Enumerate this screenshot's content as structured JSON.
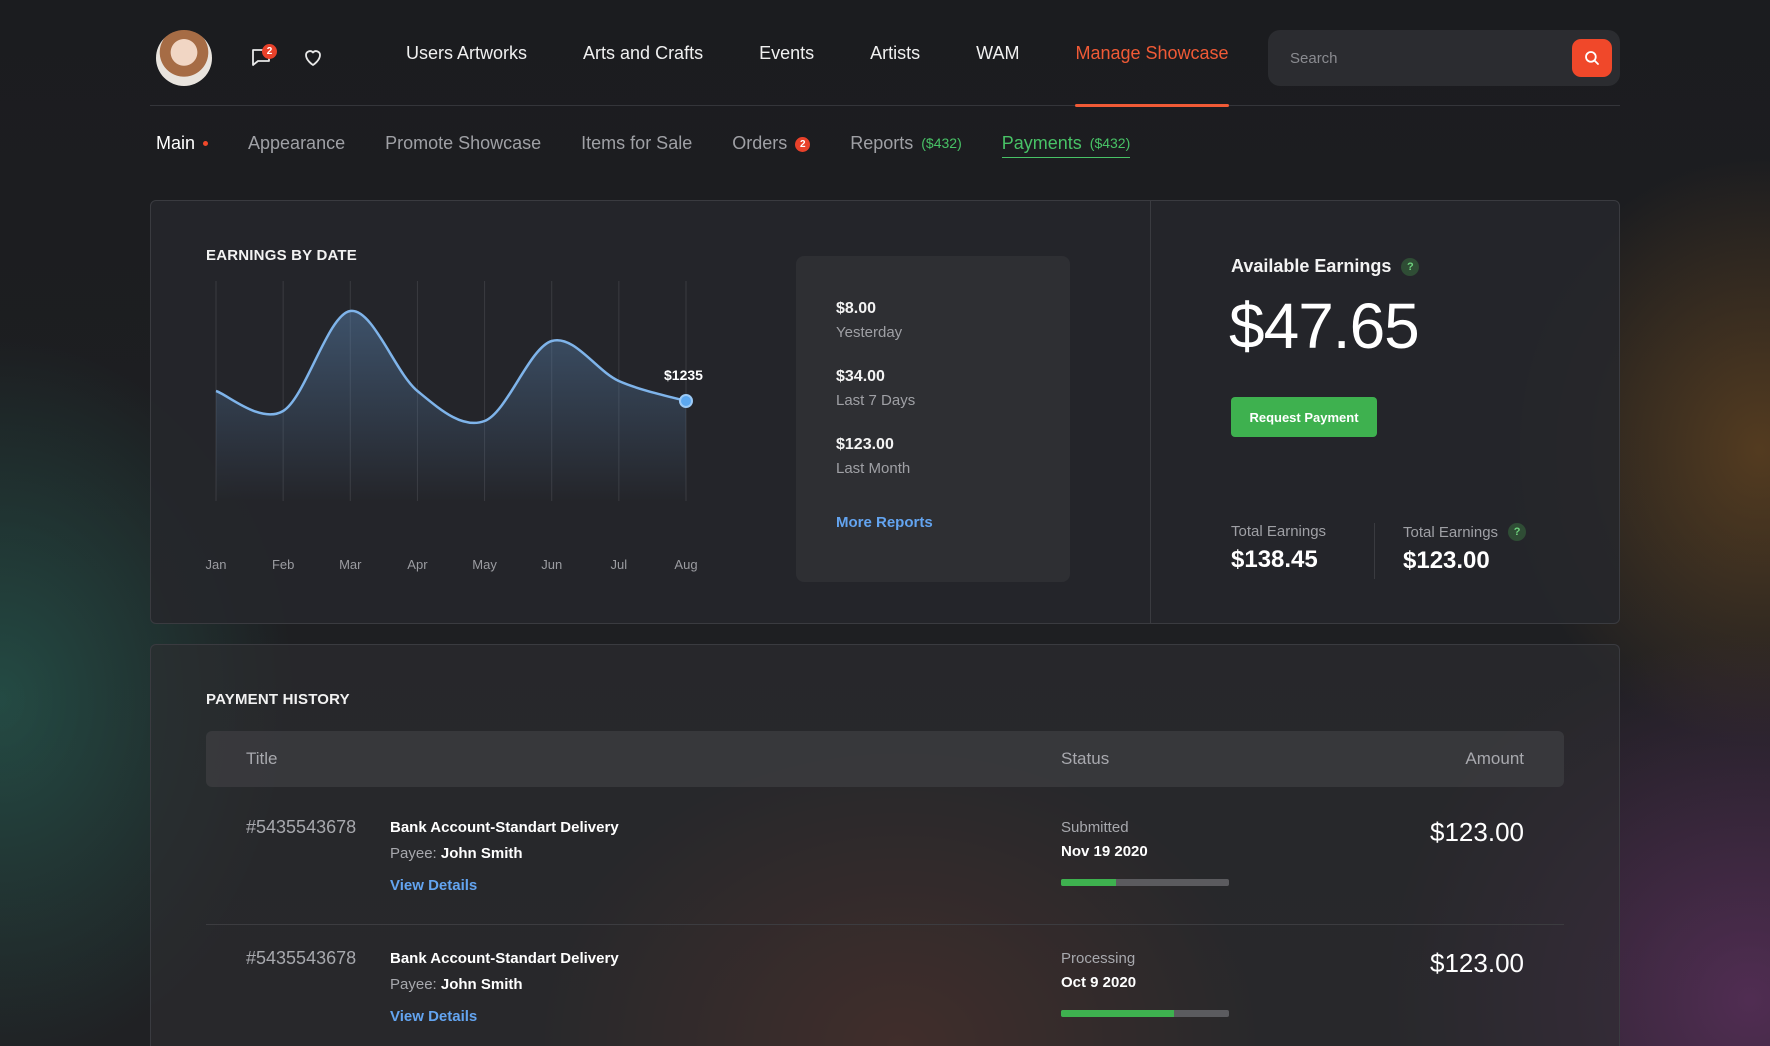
{
  "header": {
    "search_placeholder": "Search",
    "chat_badge": "2",
    "nav": [
      "Users Artworks",
      "Arts and Crafts",
      "Events",
      "Artists",
      "WAM",
      "Manage Showcase"
    ],
    "active_nav": "Manage Showcase"
  },
  "subnav": {
    "main": "Main",
    "appearance": "Appearance",
    "promote": "Promote Showcase",
    "items_for_sale": "Items for Sale",
    "orders": "Orders",
    "orders_badge": "2",
    "reports": "Reports",
    "reports_amount": "($432)",
    "payments": "Payments",
    "payments_amount": "($432)"
  },
  "earnings": {
    "title": "EARNINGS BY DATE",
    "callout": "$1235",
    "summary": [
      {
        "value": "$8.00",
        "label": "Yesterday"
      },
      {
        "value": "$34.00",
        "label": "Last 7 Days"
      },
      {
        "value": "$123.00",
        "label": "Last Month"
      }
    ],
    "more_reports": "More Reports"
  },
  "chart_data": {
    "type": "area",
    "categories": [
      "Jan",
      "Feb",
      "Mar",
      "Apr",
      "May",
      "Jun",
      "Jul",
      "Aug"
    ],
    "values": [
      55,
      45,
      95,
      55,
      40,
      80,
      60,
      50
    ],
    "annotation": "$1235",
    "grid": "vertical"
  },
  "available": {
    "title": "Available Earnings",
    "amount": "$47.65",
    "request_button": "Request Payment",
    "total1_label": "Total Earnings",
    "total1_value": "$138.45",
    "total2_label": "Total Earnings",
    "total2_value": "$123.00"
  },
  "history": {
    "title": "PAYMENT HISTORY",
    "columns": {
      "title": "Title",
      "status": "Status",
      "amount": "Amount"
    },
    "rows": [
      {
        "id": "#5435543678",
        "title": "Bank Account-Standart Delivery",
        "payee_label": "Payee:",
        "payee": "John Smith",
        "link": "View Details",
        "status": "Submitted",
        "date": "Nov 19 2020",
        "progress": 0.33,
        "amount": "$123.00"
      },
      {
        "id": "#5435543678",
        "title": "Bank Account-Standart Delivery",
        "payee_label": "Payee:",
        "payee": "John Smith",
        "link": "View Details",
        "status": "Processing",
        "date": "Oct 9 2020",
        "progress": 0.67,
        "amount": "$123.00"
      }
    ]
  },
  "colors": {
    "accent": "#f05a36",
    "green": "#3eb14f",
    "link": "#63a4f0"
  }
}
